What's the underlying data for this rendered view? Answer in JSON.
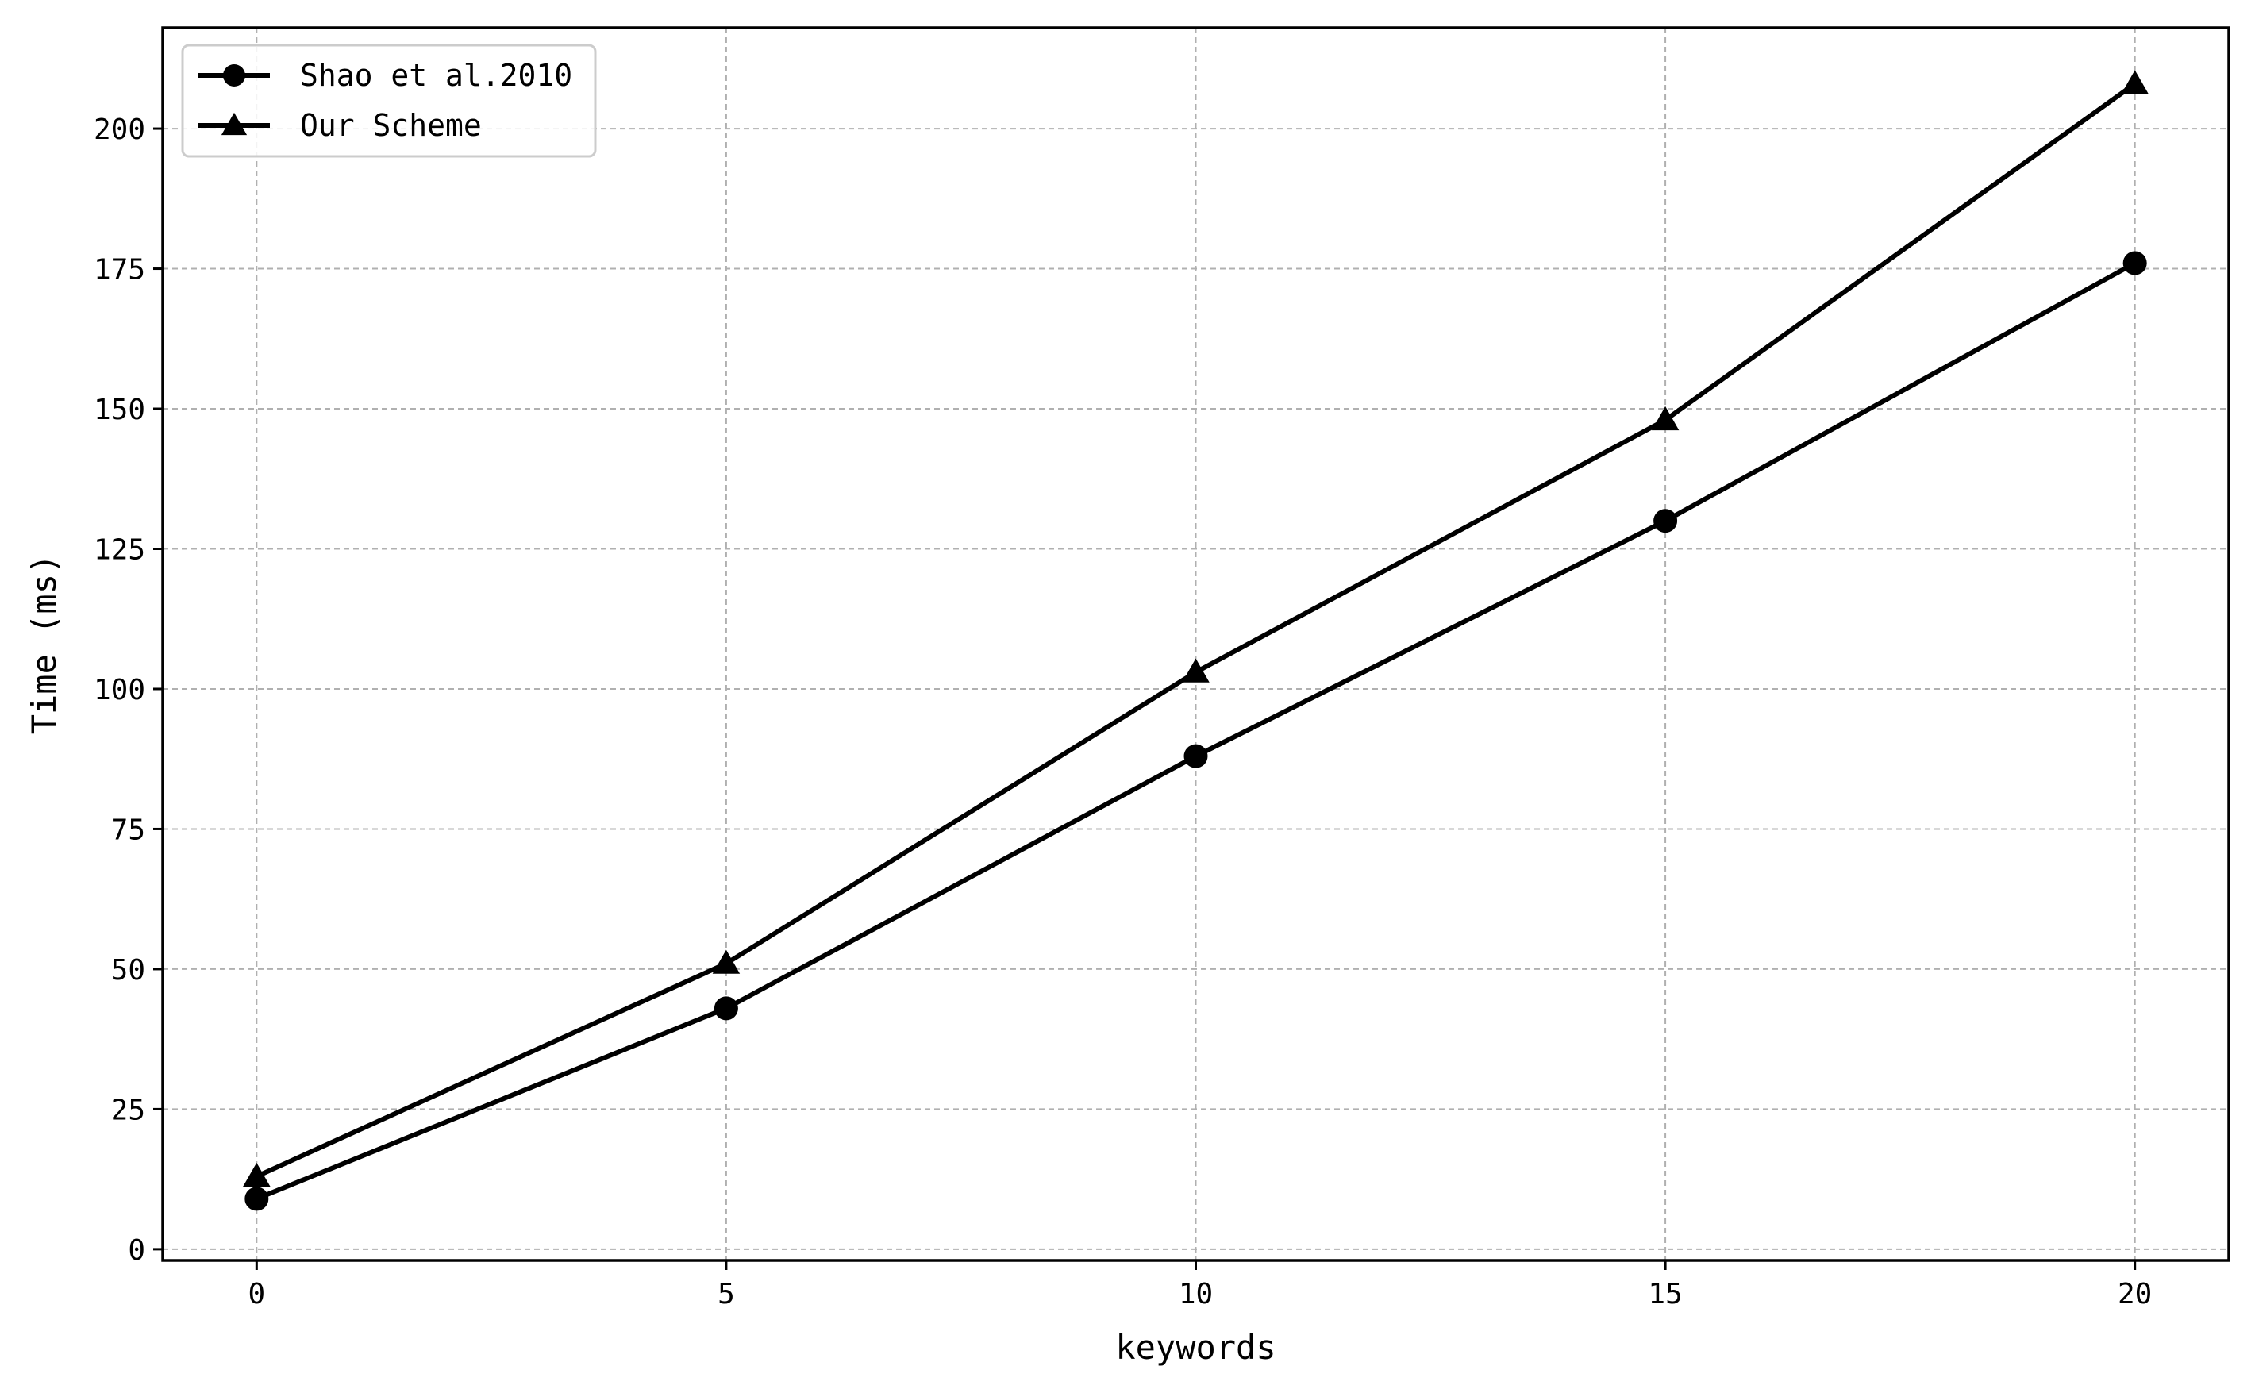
{
  "chart_data": {
    "type": "line",
    "title": "",
    "xlabel": "keywords",
    "ylabel": "Time (ms)",
    "x": [
      0,
      5,
      10,
      15,
      20
    ],
    "xlim": [
      -1,
      21
    ],
    "ylim": [
      -2,
      218
    ],
    "xticks": [
      0,
      5,
      10,
      15,
      20
    ],
    "yticks": [
      0,
      25,
      50,
      75,
      100,
      125,
      150,
      175,
      200
    ],
    "grid": true,
    "legend_position": "top-left",
    "series": [
      {
        "name": "Shao et al.2010",
        "marker": "circle",
        "color": "#000000",
        "values": [
          9,
          43,
          88,
          130,
          176
        ]
      },
      {
        "name": "Our Scheme",
        "marker": "triangle",
        "color": "#000000",
        "values": [
          13,
          51,
          103,
          148,
          208
        ]
      }
    ]
  }
}
